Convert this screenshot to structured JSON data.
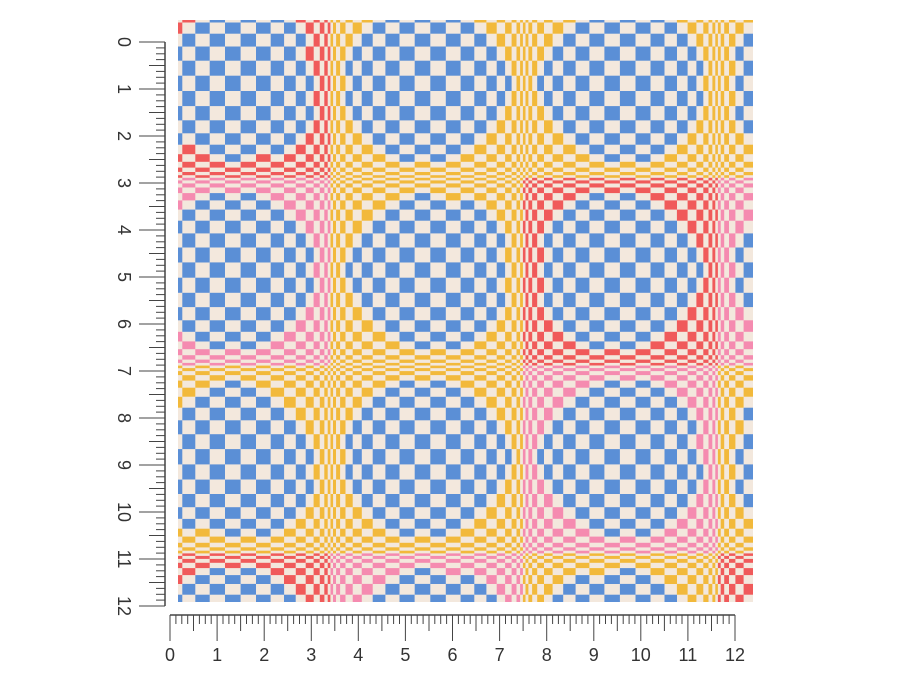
{
  "ruler": {
    "unit_labels": [
      "0",
      "1",
      "2",
      "3",
      "4",
      "5",
      "6",
      "7",
      "8",
      "9",
      "10",
      "11",
      "12"
    ],
    "max": 12,
    "subdivisions": 8
  },
  "pattern": {
    "name": "warped-checker-op-art",
    "colors": {
      "background": "#f3e8dd",
      "blue": "#5b8fd6",
      "red": "#f05a5a",
      "pink": "#f58bb0",
      "yellow": "#f2b93b"
    }
  }
}
